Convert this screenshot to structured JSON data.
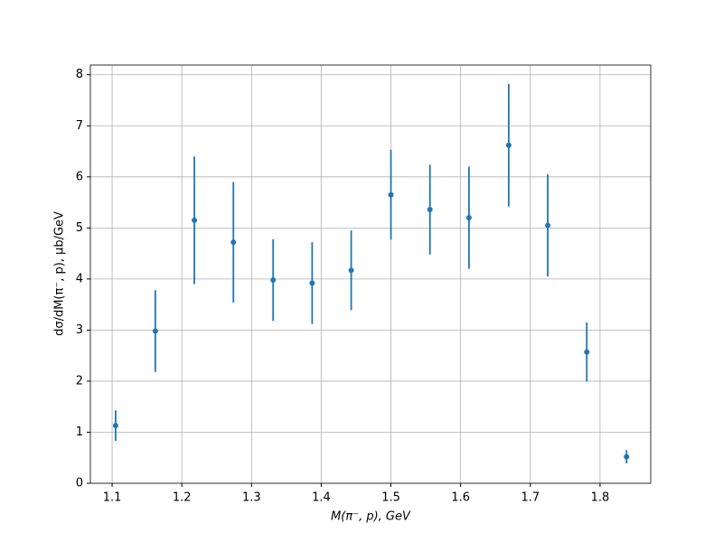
{
  "chart_data": {
    "type": "errorbar",
    "x_label": "M(π⁻, p), GeV",
    "y_label": "dσ/dM(π⁻, p), μb/GeV",
    "x": [
      1.105,
      1.162,
      1.218,
      1.274,
      1.331,
      1.387,
      1.443,
      1.5,
      1.556,
      1.612,
      1.669,
      1.725,
      1.781,
      1.838
    ],
    "series": [
      {
        "color": "#1f77b4",
        "values": [
          1.13,
          2.98,
          5.15,
          4.72,
          3.98,
          3.92,
          4.17,
          5.65,
          5.36,
          5.2,
          6.62,
          5.05,
          2.57,
          0.52
        ],
        "errors": [
          0.3,
          0.8,
          1.25,
          1.18,
          0.8,
          0.8,
          0.78,
          0.88,
          0.88,
          1.0,
          1.2,
          1.0,
          0.58,
          0.13
        ]
      }
    ],
    "xlim": [
      1.0688,
      1.8727
    ],
    "ylim": [
      0,
      8.19
    ],
    "xticks": [
      1.1,
      1.2,
      1.3,
      1.4,
      1.5,
      1.6,
      1.7,
      1.8
    ],
    "yticks": [
      0,
      1,
      2,
      3,
      4,
      5,
      6,
      7,
      8
    ],
    "grid": true
  }
}
